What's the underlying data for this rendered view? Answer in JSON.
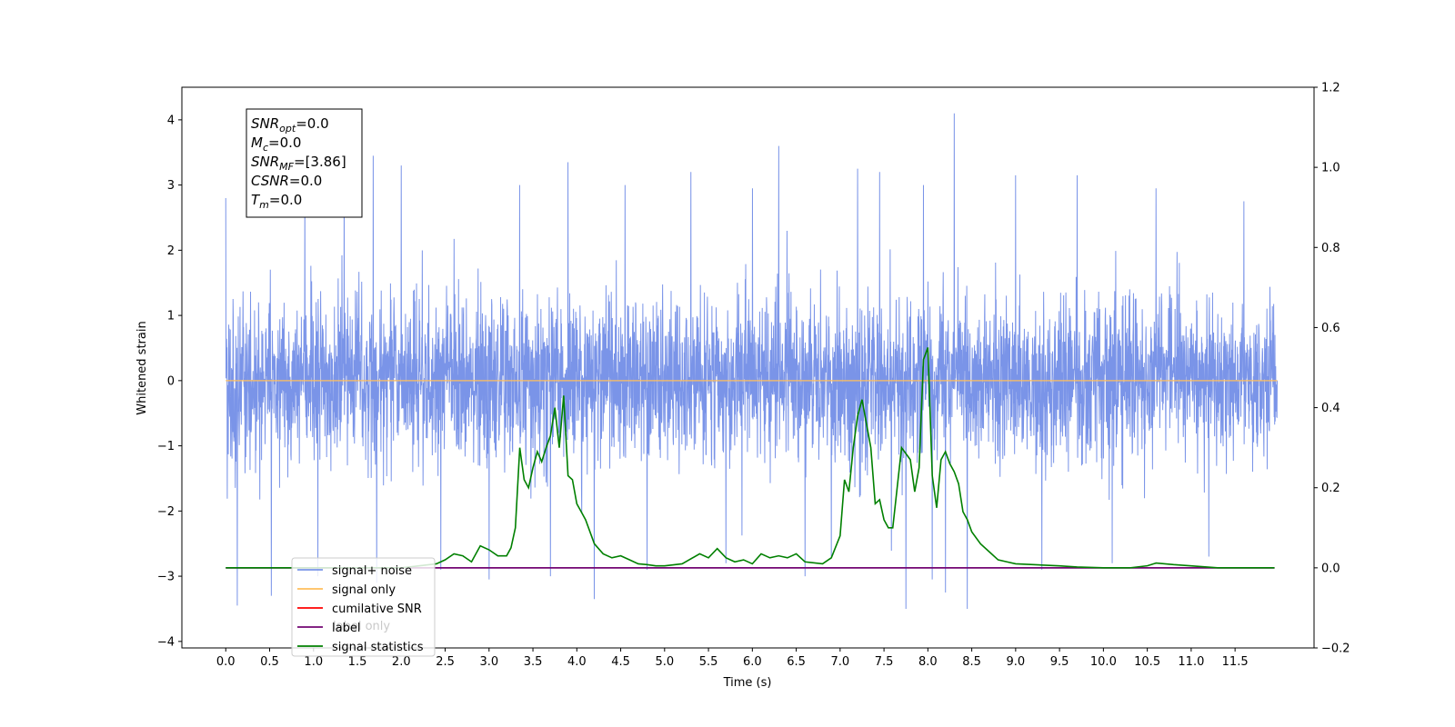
{
  "chart_data": {
    "type": "line",
    "xlabel": "Time (s)",
    "ylabel": "Whitened strain",
    "xlim": [
      -0.5,
      12.4
    ],
    "ylim": [
      -4.1,
      4.5
    ],
    "y2lim": [
      -0.2,
      1.2
    ],
    "xticks": [
      0.0,
      0.5,
      1.0,
      1.5,
      2.0,
      2.5,
      3.0,
      3.5,
      4.0,
      4.5,
      5.0,
      5.5,
      6.0,
      6.5,
      7.0,
      7.5,
      8.0,
      8.5,
      9.0,
      9.5,
      10.0,
      10.5,
      11.0,
      11.5
    ],
    "xtick_labels": [
      "0.0",
      "0.5",
      "1.0",
      "1.5",
      "2.0",
      "2.5",
      "3.0",
      "3.5",
      "4.0",
      "4.5",
      "5.0",
      "5.5",
      "6.0",
      "6.5",
      "7.0",
      "7.5",
      "8.0",
      "8.5",
      "9.0",
      "9.5",
      "10.0",
      "10.5",
      "11.0",
      "11.5"
    ],
    "yticks": [
      -4,
      -3,
      -2,
      -1,
      0,
      1,
      2,
      3,
      4
    ],
    "ytick_labels": [
      "−4",
      "−3",
      "−2",
      "−1",
      "0",
      "1",
      "2",
      "3",
      "4"
    ],
    "y2ticks": [
      -0.2,
      0.0,
      0.2,
      0.4,
      0.6,
      0.8,
      1.0,
      1.2
    ],
    "y2tick_labels": [
      "−0.2",
      "0.0",
      "0.2",
      "0.4",
      "0.6",
      "0.8",
      "1.0",
      "1.2"
    ],
    "grid": false,
    "legend_position": "lower-left",
    "info_box": [
      {
        "base": "SNR",
        "sub": "opt",
        "rest": "=0.0"
      },
      {
        "base": "M",
        "sub": "c",
        "rest": "=0.0"
      },
      {
        "base": "SNR",
        "sub": "MF",
        "rest": "=[3.86]"
      },
      {
        "base": "CSNR",
        "sub": "",
        "rest": "=0.0"
      },
      {
        "base": "T",
        "sub": "m",
        "rest": "=0.0"
      }
    ],
    "noise": {
      "name": "signal+ noise",
      "color": "#7a94e8",
      "t_range": [
        0.0,
        11.98
      ],
      "spike_maxima": [
        [
          0.0,
          2.8
        ],
        [
          0.13,
          -3.45
        ],
        [
          0.52,
          -3.3
        ],
        [
          0.9,
          3.0
        ],
        [
          1.05,
          -3.0
        ],
        [
          1.35,
          3.2
        ],
        [
          1.68,
          3.45
        ],
        [
          1.72,
          -3.1
        ],
        [
          2.0,
          3.3
        ],
        [
          2.45,
          -2.9
        ],
        [
          3.0,
          -3.05
        ],
        [
          3.35,
          3.0
        ],
        [
          3.7,
          -3.0
        ],
        [
          3.9,
          3.35
        ],
        [
          4.2,
          -3.35
        ],
        [
          4.55,
          3.0
        ],
        [
          4.8,
          -2.9
        ],
        [
          5.3,
          3.2
        ],
        [
          5.7,
          -2.8
        ],
        [
          6.0,
          2.95
        ],
        [
          6.3,
          3.6
        ],
        [
          6.6,
          -3.0
        ],
        [
          6.9,
          -2.7
        ],
        [
          7.2,
          3.25
        ],
        [
          7.45,
          3.2
        ],
        [
          7.75,
          -3.5
        ],
        [
          7.95,
          3.0
        ],
        [
          8.05,
          -3.05
        ],
        [
          8.2,
          -3.25
        ],
        [
          8.3,
          4.1
        ],
        [
          8.45,
          -3.5
        ],
        [
          9.0,
          3.15
        ],
        [
          9.3,
          -2.9
        ],
        [
          9.7,
          3.15
        ],
        [
          10.1,
          -2.8
        ],
        [
          10.6,
          2.95
        ],
        [
          11.2,
          -2.7
        ],
        [
          11.6,
          2.75
        ]
      ]
    },
    "signal_only": {
      "name": "signal only",
      "color": "#ffbe5c",
      "value": 0.0
    },
    "cumulative_snr": {
      "name": "cumilative SNR",
      "color": "#ff0000"
    },
    "label_line": {
      "name": "label",
      "color": "#730673",
      "x": [
        0.0,
        11.95
      ],
      "y": [
        0.0,
        0.0
      ]
    },
    "hidden_legend_label": "label only",
    "signal_statistics": {
      "name": "signal statistics",
      "color": "#008000",
      "x": [
        0.0,
        2.0,
        2.2,
        2.4,
        2.5,
        2.6,
        2.7,
        2.8,
        2.9,
        3.0,
        3.1,
        3.2,
        3.25,
        3.3,
        3.35,
        3.4,
        3.45,
        3.5,
        3.55,
        3.6,
        3.65,
        3.7,
        3.75,
        3.8,
        3.85,
        3.9,
        3.95,
        4.0,
        4.05,
        4.1,
        4.2,
        4.3,
        4.4,
        4.5,
        4.6,
        4.7,
        4.8,
        4.9,
        5.0,
        5.2,
        5.4,
        5.5,
        5.6,
        5.7,
        5.8,
        5.9,
        6.0,
        6.1,
        6.2,
        6.3,
        6.4,
        6.5,
        6.6,
        6.8,
        6.9,
        7.0,
        7.05,
        7.1,
        7.15,
        7.2,
        7.25,
        7.3,
        7.35,
        7.4,
        7.45,
        7.5,
        7.55,
        7.6,
        7.7,
        7.8,
        7.85,
        7.9,
        7.95,
        8.0,
        8.05,
        8.1,
        8.15,
        8.2,
        8.25,
        8.3,
        8.35,
        8.4,
        8.45,
        8.5,
        8.6,
        8.7,
        8.8,
        8.9,
        9.0,
        9.2,
        9.5,
        9.7,
        10.0,
        10.3,
        10.5,
        10.6,
        10.8,
        11.0,
        11.3,
        11.6,
        11.95
      ],
      "y": [
        0.0,
        0.0,
        0.005,
        0.01,
        0.02,
        0.035,
        0.03,
        0.015,
        0.055,
        0.045,
        0.03,
        0.03,
        0.05,
        0.1,
        0.3,
        0.22,
        0.2,
        0.25,
        0.29,
        0.265,
        0.3,
        0.33,
        0.4,
        0.3,
        0.43,
        0.23,
        0.22,
        0.16,
        0.14,
        0.12,
        0.06,
        0.035,
        0.025,
        0.03,
        0.02,
        0.01,
        0.008,
        0.005,
        0.005,
        0.01,
        0.035,
        0.025,
        0.048,
        0.025,
        0.015,
        0.02,
        0.01,
        0.035,
        0.025,
        0.03,
        0.025,
        0.035,
        0.015,
        0.01,
        0.025,
        0.08,
        0.22,
        0.19,
        0.3,
        0.38,
        0.42,
        0.36,
        0.3,
        0.16,
        0.17,
        0.12,
        0.1,
        0.1,
        0.3,
        0.27,
        0.19,
        0.25,
        0.52,
        0.55,
        0.23,
        0.15,
        0.27,
        0.29,
        0.26,
        0.24,
        0.21,
        0.14,
        0.12,
        0.09,
        0.06,
        0.04,
        0.02,
        0.015,
        0.01,
        0.008,
        0.005,
        0.002,
        0.0,
        0.0,
        0.005,
        0.012,
        0.008,
        0.005,
        0.0,
        0.0,
        0.0
      ]
    }
  }
}
